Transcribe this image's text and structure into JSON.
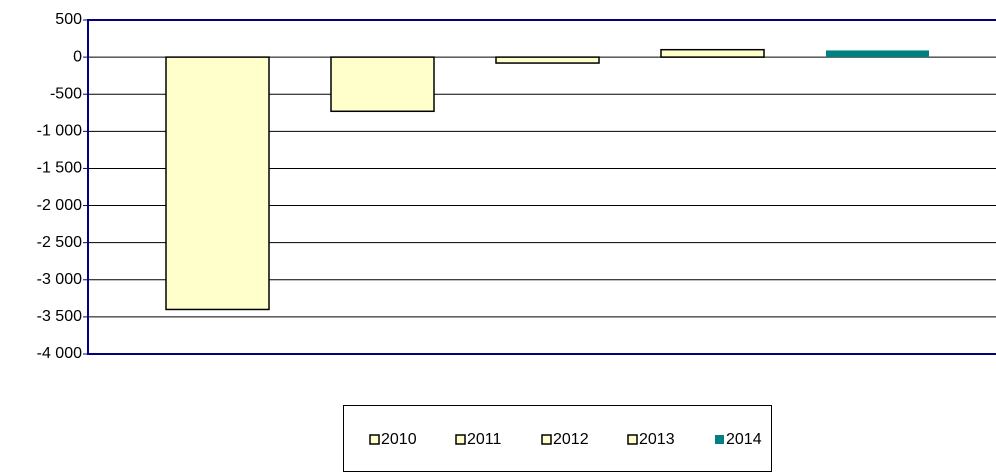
{
  "chart_data": {
    "type": "bar",
    "categories": [
      null
    ],
    "series": [
      {
        "name": "2010",
        "color": "#ffffcc",
        "values": [
          -3400
        ]
      },
      {
        "name": "2011",
        "color": "#ffffcc",
        "values": [
          -730
        ]
      },
      {
        "name": "2012",
        "color": "#ffffcc",
        "values": [
          -80
        ]
      },
      {
        "name": "2013",
        "color": "#ffffcc",
        "values": [
          100
        ]
      },
      {
        "name": "2014",
        "color": "#008080",
        "values": [
          90
        ]
      }
    ],
    "ylim": [
      -4000,
      500
    ],
    "yticks": [
      500,
      0,
      -500,
      {
        "value": -1000,
        "label": "-1 000"
      },
      {
        "value": -1500,
        "label": "-1 500"
      },
      {
        "value": -2000,
        "label": "-2 000"
      },
      {
        "value": -2500,
        "label": "-2 500"
      },
      {
        "value": -3000,
        "label": "-3 000"
      },
      {
        "value": -3500,
        "label": "-3 500"
      },
      {
        "value": -4000,
        "label": "-4 000"
      }
    ],
    "grid": true,
    "legend": "bottom"
  }
}
